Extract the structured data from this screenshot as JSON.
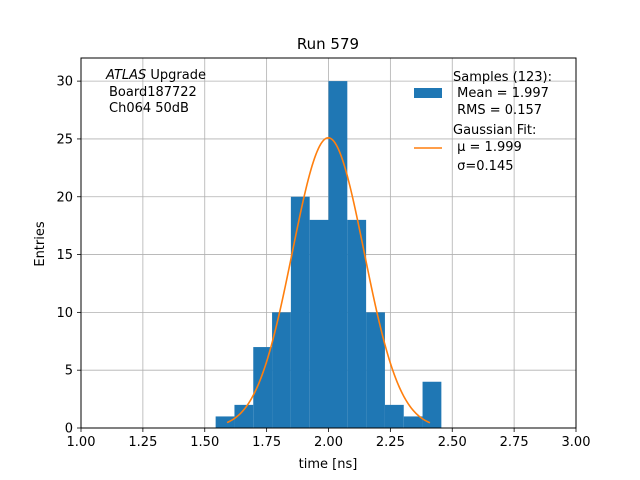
{
  "chart_data": {
    "type": "histogram",
    "title": "Run 579",
    "xlabel": "time [ns]",
    "ylabel": "Entries",
    "xlim": [
      1.0,
      3.0
    ],
    "ylim": [
      0,
      32
    ],
    "grid": true,
    "xticks": [
      "1.00",
      "1.25",
      "1.50",
      "1.75",
      "2.00",
      "2.25",
      "2.50",
      "2.75",
      "3.00"
    ],
    "yticks": [
      "0",
      "5",
      "10",
      "15",
      "20",
      "25",
      "30"
    ],
    "annotation": {
      "italic": "ATLAS",
      "line1_rest": " Upgrade",
      "line2": "Board187722",
      "line3": "Ch064 50dB"
    },
    "histogram": {
      "color": "#1f77b4",
      "bins": [
        {
          "x0": 1.544,
          "x1": 1.62,
          "count": 1
        },
        {
          "x0": 1.62,
          "x1": 1.696,
          "count": 2
        },
        {
          "x0": 1.696,
          "x1": 1.772,
          "count": 7
        },
        {
          "x0": 1.772,
          "x1": 1.848,
          "count": 10
        },
        {
          "x0": 1.848,
          "x1": 1.924,
          "count": 20
        },
        {
          "x0": 1.924,
          "x1": 2.0,
          "count": 18
        },
        {
          "x0": 2.0,
          "x1": 2.076,
          "count": 30
        },
        {
          "x0": 2.076,
          "x1": 2.152,
          "count": 18
        },
        {
          "x0": 2.152,
          "x1": 2.228,
          "count": 10
        },
        {
          "x0": 2.228,
          "x1": 2.304,
          "count": 2
        },
        {
          "x0": 2.304,
          "x1": 2.38,
          "count": 1
        },
        {
          "x0": 2.38,
          "x1": 2.456,
          "count": 4
        }
      ]
    },
    "fit": {
      "type": "gaussian",
      "color": "#ff7f0e",
      "amplitude": 25.1,
      "mu": 1.999,
      "sigma": 0.145,
      "x_range": [
        1.59,
        2.41
      ]
    },
    "legend": {
      "placement": "top-right",
      "samples_lines": [
        "Samples (123):",
        " Mean = 1.997",
        " RMS = 0.157"
      ],
      "fit_lines": [
        "Gaussian Fit:",
        " μ = 1.999",
        " σ=0.145"
      ]
    }
  }
}
